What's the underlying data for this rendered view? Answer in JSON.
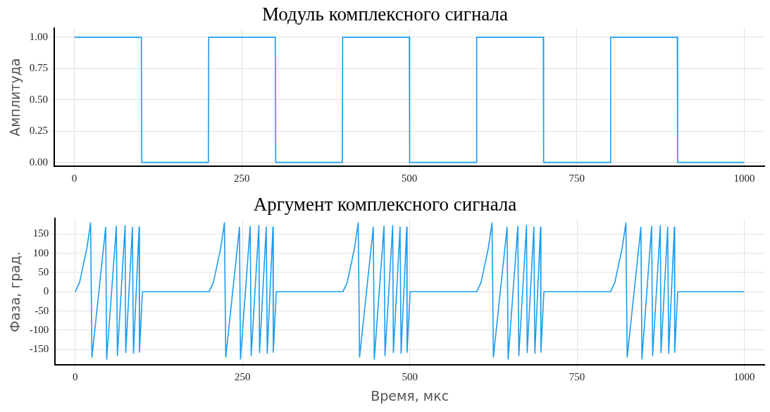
{
  "chart_data": [
    {
      "type": "line",
      "title": "Модуль комплексного сигнала",
      "ylabel": "Амплитуда",
      "xlim": [
        -30,
        1030
      ],
      "xticks": [
        0,
        250,
        500,
        750,
        1000
      ],
      "ylim": [
        -0.03,
        1.07
      ],
      "yticks": [
        {
          "value": 0,
          "label": "0.00"
        },
        0.25,
        {
          "value": 0.5,
          "label": "0.50"
        },
        0.75,
        {
          "value": 1,
          "label": "1.00"
        }
      ],
      "grid": true,
      "legend": false,
      "marker": "none",
      "line_style": "solid",
      "series": [
        {
          "color": "#1a9cf0",
          "x": [
            0,
            100,
            100.5,
            200,
            200.5,
            300,
            300.5,
            400,
            400.5,
            500,
            500.5,
            600,
            600.5,
            700,
            700.5,
            800,
            800.5,
            900,
            900.5,
            1000
          ],
          "values": [
            1,
            1,
            0,
            0,
            1,
            1,
            0,
            0,
            1,
            1,
            0,
            0,
            1,
            1,
            0,
            0,
            1,
            1,
            0,
            0
          ]
        }
      ]
    },
    {
      "type": "line",
      "title": "Аргумент комплексного сигнала",
      "xlabel": "Время, мкс",
      "ylabel": "Фаза, град.",
      "xlim": [
        -30,
        1030
      ],
      "xticks": [
        0,
        250,
        500,
        750,
        1000
      ],
      "ylim": [
        -190,
        190
      ],
      "yticks": [
        -150,
        -100,
        -50,
        0,
        50,
        100,
        150
      ],
      "grid": true,
      "legend": false,
      "marker": "none",
      "line_style": "solid",
      "series": [
        {
          "color": "#1a9cf0",
          "x": [
            0,
            6.5,
            12,
            17.5,
            23,
            25,
            45.5,
            47,
            61.5,
            63,
            74.5,
            75.5,
            85.5,
            87,
            95.5,
            96,
            100.5,
            200,
            206.5,
            212,
            217.5,
            223,
            225,
            245.5,
            247,
            261.5,
            263,
            274.5,
            275.5,
            285.5,
            287,
            295.5,
            296,
            300.5,
            400,
            406.5,
            412,
            417.5,
            423,
            425,
            445.5,
            447,
            461.5,
            463,
            474.5,
            475.5,
            485.5,
            487,
            495.5,
            496,
            500.5,
            600,
            606.5,
            612,
            617.5,
            623,
            625,
            645.5,
            647,
            661.5,
            663,
            674.5,
            675.5,
            685.5,
            687,
            695.5,
            696,
            700.5,
            800,
            806.5,
            812,
            817.5,
            823,
            825,
            845.5,
            847,
            861.5,
            863,
            874.5,
            875.5,
            885.5,
            887,
            895.5,
            896,
            900.5,
            1000
          ],
          "values": [
            0,
            24,
            69,
            114,
            179,
            -170,
            168,
            -175,
            170,
            -166,
            172,
            -158,
            168,
            -160,
            168,
            -157,
            0,
            0,
            24,
            69,
            114,
            179,
            -170,
            168,
            -175,
            170,
            -166,
            172,
            -158,
            168,
            -160,
            168,
            -157,
            0,
            0,
            24,
            69,
            114,
            179,
            -170,
            168,
            -175,
            170,
            -166,
            172,
            -158,
            168,
            -160,
            168,
            -157,
            0,
            0,
            24,
            69,
            114,
            179,
            -170,
            168,
            -175,
            170,
            -166,
            172,
            -158,
            168,
            -160,
            168,
            -157,
            0,
            0,
            24,
            69,
            114,
            179,
            -170,
            168,
            -175,
            170,
            -166,
            172,
            -158,
            168,
            -160,
            168,
            -157,
            0,
            0
          ]
        }
      ]
    }
  ]
}
